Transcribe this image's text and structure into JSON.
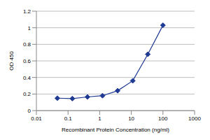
{
  "chart_data": {
    "type": "line",
    "x_label": "Recombinant Protein Concentration (ng/ml)",
    "y_label": "OD 450",
    "x": [
      0.046,
      0.137,
      0.41,
      1.23,
      3.7,
      11.1,
      33.3,
      100
    ],
    "values": [
      0.15,
      0.145,
      0.165,
      0.18,
      0.24,
      0.36,
      0.68,
      1.03
    ],
    "color": "#1f3a93",
    "marker": "diamond",
    "log": "x",
    "xlim": [
      0.01,
      1000
    ],
    "xticks": [
      0.01,
      0.1,
      1,
      10,
      100,
      1000
    ],
    "ylim": [
      0,
      1.2
    ],
    "yticks": [
      0,
      0.2,
      0.4,
      0.6,
      0.8,
      1,
      1.2
    ],
    "grid": true
  }
}
